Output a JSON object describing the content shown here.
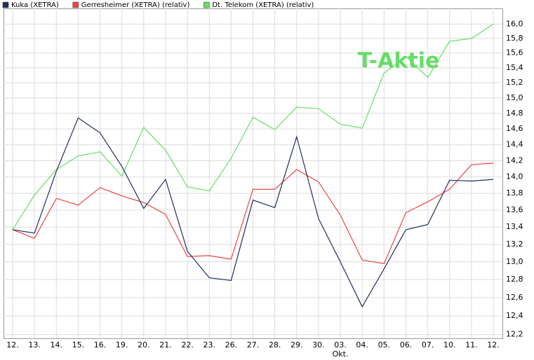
{
  "chart_data": {
    "type": "line",
    "categories": [
      "12.",
      "13.",
      "14.",
      "15.",
      "16.",
      "19.",
      "20.",
      "21.",
      "22.",
      "23.",
      "26.",
      "27.",
      "28.",
      "29.",
      "30.",
      "03.",
      "04.",
      "05.",
      "06.",
      "07.",
      "10.",
      "11.",
      "12."
    ],
    "x_group": {
      "label": "Okt.",
      "start": "03."
    },
    "series": [
      {
        "name": "Kuka (XETRA)",
        "color": "#1f2f5f",
        "values": [
          13.37,
          13.33,
          14.07,
          14.74,
          14.55,
          14.13,
          13.62,
          13.97,
          13.12,
          12.82,
          12.79,
          13.72,
          13.63,
          14.5,
          13.5,
          13.0,
          12.5,
          12.92,
          13.37,
          13.43,
          13.96,
          13.95,
          13.97
        ]
      },
      {
        "name": "Gerresheimer (XETRA) (relativ)",
        "color": "#ee4444",
        "values": [
          13.37,
          13.27,
          13.74,
          13.66,
          13.87,
          13.77,
          13.69,
          13.55,
          13.06,
          13.07,
          13.03,
          13.85,
          13.85,
          14.09,
          13.94,
          13.54,
          13.02,
          12.98,
          13.57,
          13.7,
          13.85,
          14.15,
          14.17
        ]
      },
      {
        "name": "Dt. Telekom (XETRA) (relativ)",
        "color": "#66dd66",
        "values": [
          13.37,
          13.78,
          14.09,
          14.26,
          14.31,
          14.01,
          14.62,
          14.33,
          13.88,
          13.83,
          14.23,
          14.75,
          14.59,
          14.88,
          14.86,
          14.66,
          14.61,
          15.33,
          15.55,
          15.27,
          15.76,
          15.8,
          16.0
        ]
      }
    ],
    "annotation": {
      "text": "T-Aktie",
      "color": "#66dd66"
    },
    "ylim": [
      12.16,
      16.22
    ],
    "log_scale": true,
    "grid": true,
    "yticks": [
      {
        "value": 12.2,
        "label": "12,2"
      },
      {
        "value": 12.4,
        "label": "12,4"
      },
      {
        "value": 12.6,
        "label": "12,6"
      },
      {
        "value": 12.8,
        "label": "12,8"
      },
      {
        "value": 13.0,
        "label": "13,0"
      },
      {
        "value": 13.2,
        "label": "13,2"
      },
      {
        "value": 13.4,
        "label": "13,4"
      },
      {
        "value": 13.6,
        "label": "13,6"
      },
      {
        "value": 13.8,
        "label": "13,8"
      },
      {
        "value": 14.0,
        "label": "14,0"
      },
      {
        "value": 14.2,
        "label": "14,2"
      },
      {
        "value": 14.4,
        "label": "14,4"
      },
      {
        "value": 14.6,
        "label": "14,6"
      },
      {
        "value": 14.8,
        "label": "14,8"
      },
      {
        "value": 15.0,
        "label": "15,0"
      },
      {
        "value": 15.2,
        "label": "15,2"
      },
      {
        "value": 15.4,
        "label": "15,4"
      },
      {
        "value": 15.6,
        "label": "15,6"
      },
      {
        "value": 15.8,
        "label": "15,8"
      },
      {
        "value": 16.0,
        "label": "16,0"
      }
    ]
  }
}
